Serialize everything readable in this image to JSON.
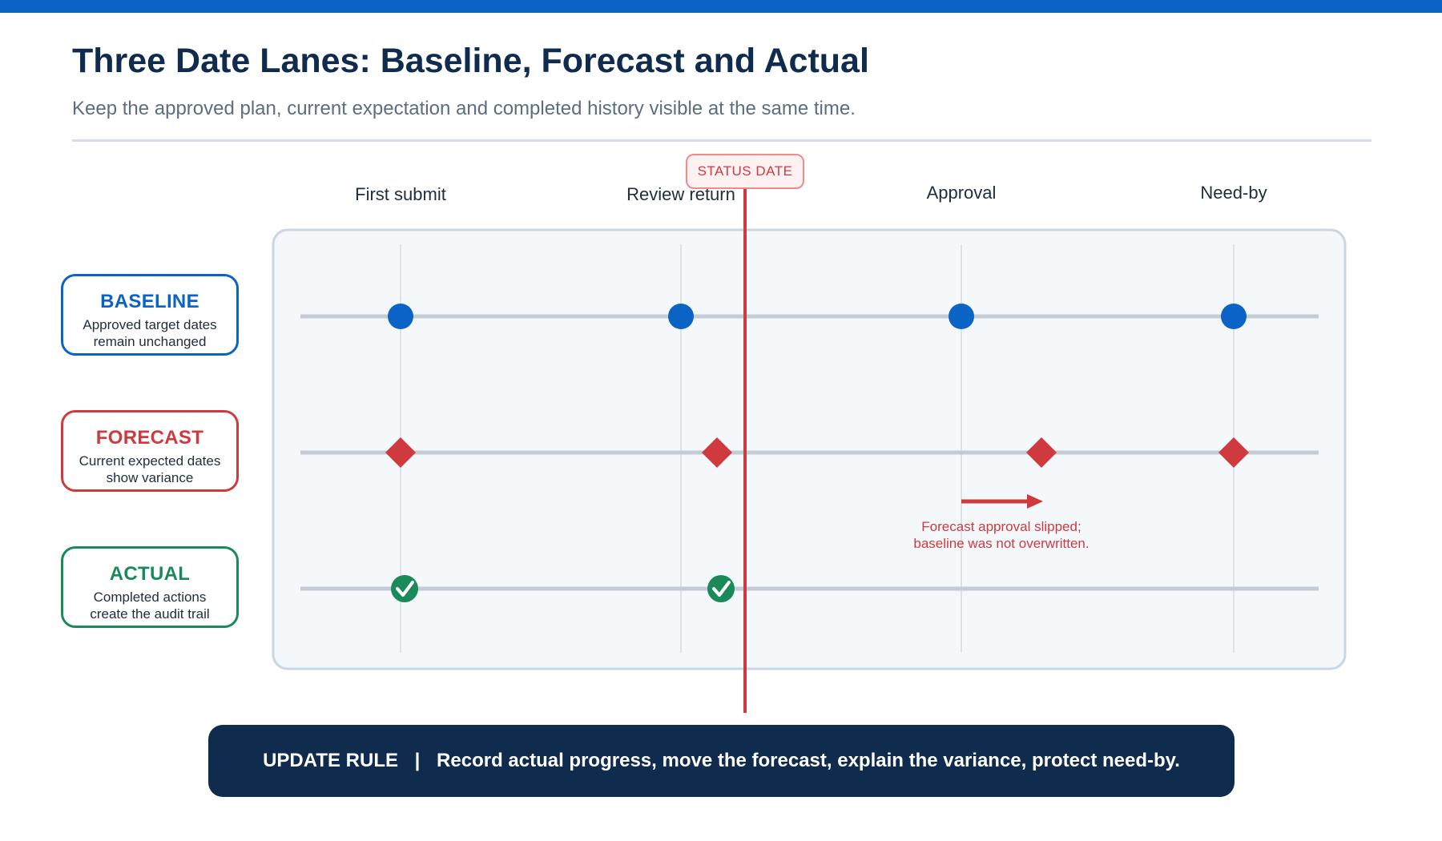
{
  "header": {
    "title": "Three Date Lanes: Baseline, Forecast and Actual",
    "subtitle": "Keep the approved plan, current expectation and completed history visible at the same time."
  },
  "milestones": [
    "First submit",
    "Review return",
    "Approval",
    "Need-by"
  ],
  "lanes": [
    {
      "key": "baseline",
      "title": "BASELINE",
      "desc_line1": "Approved target dates",
      "desc_line2": "remain unchanged",
      "color": "#0b63c5",
      "marker": "circle"
    },
    {
      "key": "forecast",
      "title": "FORECAST",
      "desc_line1": "Current expected dates",
      "desc_line2": "show variance",
      "color": "#cf3a3f",
      "marker": "diamond"
    },
    {
      "key": "actual",
      "title": "ACTUAL",
      "desc_line1": "Completed actions",
      "desc_line2": "create the audit trail",
      "color": "#1b8a5a",
      "marker": "check"
    }
  ],
  "status_date": {
    "label": "STATUS DATE"
  },
  "annotation": {
    "line1": "Forecast approval slipped;",
    "line2": "baseline was not overwritten."
  },
  "update_rule": {
    "label": "UPDATE RULE",
    "separator": "|",
    "text": "Record actual progress, move the forecast, explain the variance, protect need-by."
  },
  "colors": {
    "accent": "#0b63c5",
    "navy": "#0f2b4d",
    "forecast_red": "#cf3a3f",
    "actual_green": "#1b8a5a",
    "panel_bg": "#f5f8fb",
    "lane_line": "#c3ccd6",
    "grid_line": "#dbe2ea"
  }
}
